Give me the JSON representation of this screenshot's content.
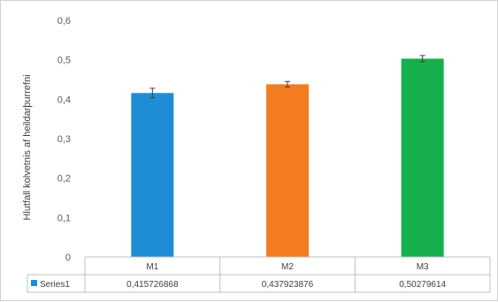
{
  "chart_data": {
    "type": "bar",
    "ylabel": "Hlutfall kolvetnis af heildarþurrefni",
    "ylim": [
      0,
      0.6
    ],
    "ytick_labels": [
      "0",
      "0,1",
      "0,2",
      "0,3",
      "0,4",
      "0,5",
      "0,6"
    ],
    "categories": [
      "M1",
      "M2",
      "M3"
    ],
    "series": [
      {
        "name": "Series1",
        "values": [
          0.415726868,
          0.437923876,
          0.50279614
        ],
        "value_labels": [
          "0,415726868",
          "0,437923876",
          "0,50279614"
        ],
        "errors": [
          0.012,
          0.007,
          0.008
        ],
        "colors": [
          "#1f8dd6",
          "#f47c20",
          "#16b04d"
        ]
      }
    ],
    "grid": false,
    "legend": "data-table"
  }
}
